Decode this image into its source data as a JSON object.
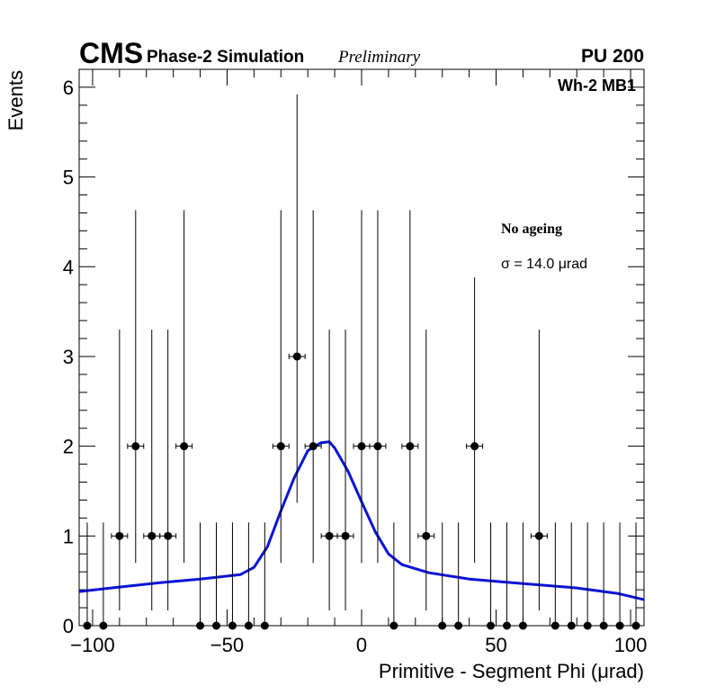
{
  "chart_data": {
    "type": "scatter",
    "header": {
      "experiment": "CMS",
      "subtitle": "Phase-2 Simulation",
      "status": "Preliminary",
      "pileup": "PU 200"
    },
    "region": "Wh-2 MB1",
    "xlabel": "Primitive - Segment Phi (μrad)",
    "ylabel": "Events",
    "xlim": [
      -105,
      105
    ],
    "ylim": [
      0,
      6.2
    ],
    "xticks": [
      -100,
      -50,
      0,
      50,
      100
    ],
    "xtick_labels": [
      "−100",
      "−50",
      "0",
      "50",
      "100"
    ],
    "yticks": [
      0,
      1,
      2,
      3,
      4,
      5,
      6
    ],
    "ytick_labels": [
      "0",
      "1",
      "2",
      "3",
      "4",
      "5",
      "6"
    ],
    "bin_half_width": 3,
    "series": [
      {
        "name": "No ageing",
        "kind": "points_with_errors",
        "color": "#000000",
        "points": [
          {
            "x": -102,
            "y": 0,
            "lo": 0,
            "hi": 1.15
          },
          {
            "x": -96,
            "y": 0,
            "lo": 0,
            "hi": 1.15
          },
          {
            "x": -90,
            "y": 1,
            "lo": 0.17,
            "hi": 3.3
          },
          {
            "x": -84,
            "y": 2,
            "lo": 0.7,
            "hi": 4.63
          },
          {
            "x": -78,
            "y": 1,
            "lo": 0.17,
            "hi": 3.3
          },
          {
            "x": -72,
            "y": 1,
            "lo": 0.17,
            "hi": 3.3
          },
          {
            "x": -66,
            "y": 2,
            "lo": 0.7,
            "hi": 4.63
          },
          {
            "x": -60,
            "y": 0,
            "lo": 0,
            "hi": 1.15
          },
          {
            "x": -54,
            "y": 0,
            "lo": 0,
            "hi": 1.15
          },
          {
            "x": -48,
            "y": 0,
            "lo": 0,
            "hi": 1.15
          },
          {
            "x": -42,
            "y": 0,
            "lo": 0,
            "hi": 1.15
          },
          {
            "x": -36,
            "y": 0,
            "lo": 0,
            "hi": 1.15
          },
          {
            "x": -30,
            "y": 2,
            "lo": 0.7,
            "hi": 4.63
          },
          {
            "x": -24,
            "y": 3,
            "lo": 1.37,
            "hi": 5.92
          },
          {
            "x": -18,
            "y": 2,
            "lo": 0.7,
            "hi": 4.63
          },
          {
            "x": -12,
            "y": 1,
            "lo": 0.17,
            "hi": 3.3
          },
          {
            "x": -6,
            "y": 1,
            "lo": 0.17,
            "hi": 3.3
          },
          {
            "x": 0,
            "y": 2,
            "lo": 0.7,
            "hi": 4.63
          },
          {
            "x": 6,
            "y": 2,
            "lo": 0.7,
            "hi": 4.63
          },
          {
            "x": 12,
            "y": 0,
            "lo": 0,
            "hi": 1.15
          },
          {
            "x": 18,
            "y": 2,
            "lo": 0.7,
            "hi": 4.63
          },
          {
            "x": 24,
            "y": 1,
            "lo": 0.17,
            "hi": 3.3
          },
          {
            "x": 30,
            "y": 0,
            "lo": 0,
            "hi": 1.15
          },
          {
            "x": 36,
            "y": 0,
            "lo": 0,
            "hi": 1.15
          },
          {
            "x": 42,
            "y": 2,
            "lo": 0.7,
            "hi": 3.88
          },
          {
            "x": 48,
            "y": 0,
            "lo": 0,
            "hi": 1.15
          },
          {
            "x": 54,
            "y": 0,
            "lo": 0,
            "hi": 1.15
          },
          {
            "x": 60,
            "y": 0,
            "lo": 0,
            "hi": 1.15
          },
          {
            "x": 66,
            "y": 1,
            "lo": 0.17,
            "hi": 3.3
          },
          {
            "x": 72,
            "y": 0,
            "lo": 0,
            "hi": 1.15
          },
          {
            "x": 78,
            "y": 0,
            "lo": 0,
            "hi": 1.15
          },
          {
            "x": 84,
            "y": 0,
            "lo": 0,
            "hi": 1.15
          },
          {
            "x": 90,
            "y": 0,
            "lo": 0,
            "hi": 1.15
          },
          {
            "x": 96,
            "y": 0,
            "lo": 0,
            "hi": 1.15
          },
          {
            "x": 102,
            "y": 0,
            "lo": 0,
            "hi": 1.15
          }
        ]
      },
      {
        "name": "Fit",
        "kind": "line",
        "color": "#0a14d8",
        "x": [
          -105,
          -90,
          -75,
          -60,
          -45,
          -40,
          -35,
          -30,
          -25,
          -20,
          -15,
          -12,
          -10,
          -5,
          0,
          5,
          10,
          15,
          25,
          40,
          60,
          80,
          95,
          105
        ],
        "y": [
          0.38,
          0.43,
          0.48,
          0.52,
          0.57,
          0.65,
          0.88,
          1.28,
          1.65,
          1.95,
          2.04,
          2.05,
          1.98,
          1.72,
          1.38,
          1.05,
          0.8,
          0.68,
          0.59,
          0.52,
          0.47,
          0.42,
          0.36,
          0.29
        ]
      }
    ],
    "annotations": {
      "label": "No ageing",
      "sigma": "σ = 14.0  μrad"
    }
  }
}
